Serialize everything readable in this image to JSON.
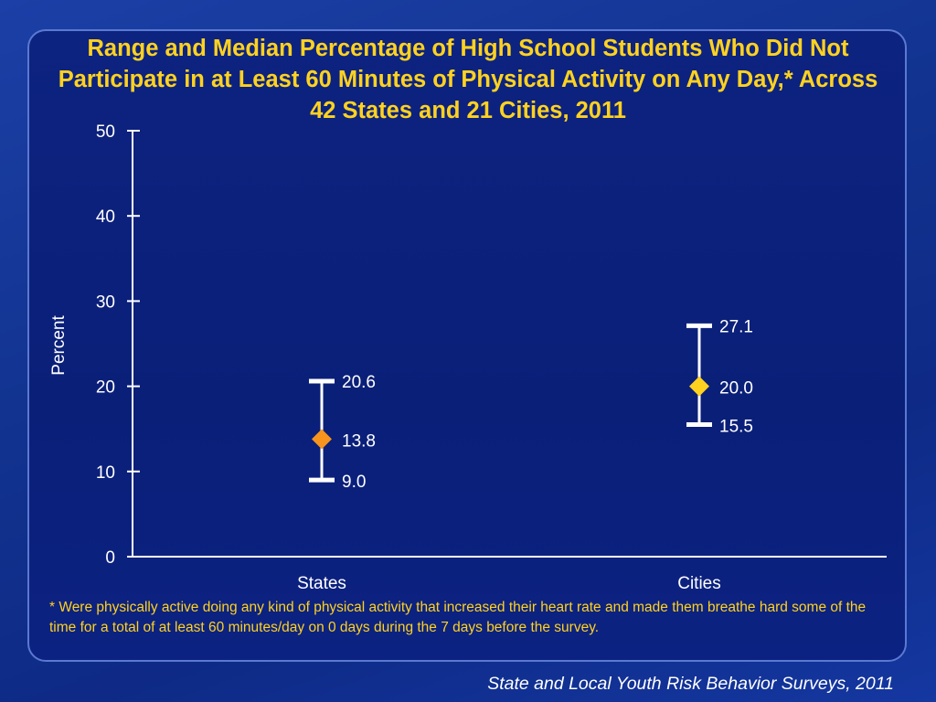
{
  "title": "Range and Median Percentage of High School Students Who Did Not Participate in at Least 60 Minutes of Physical Activity on Any Day,* Across 42 States and 21 Cities, 2011",
  "footnote": "* Were physically active doing any kind of physical activity that increased their heart rate and made them breathe hard some of the time for a total of at least 60 minutes/day on 0 days during the 7 days before the survey.",
  "source": "State and Local Youth Risk Behavior Surveys, 2011",
  "colors": {
    "title": "#ffd21f",
    "states_marker": "#f7941d",
    "cities_marker": "#ffd21f",
    "range_bar": "#ffffff"
  },
  "chart_data": {
    "type": "range",
    "ylabel": "Percent",
    "ylim": [
      0,
      50
    ],
    "yticks": [
      0,
      10,
      20,
      30,
      40,
      50
    ],
    "categories": [
      "States",
      "Cities"
    ],
    "series": [
      {
        "category": "States",
        "min": 9.0,
        "median": 13.8,
        "max": 20.6,
        "min_label": "9.0",
        "median_label": "13.8",
        "max_label": "20.6"
      },
      {
        "category": "Cities",
        "min": 15.5,
        "median": 20.0,
        "max": 27.1,
        "min_label": "15.5",
        "median_label": "20.0",
        "max_label": "27.1"
      }
    ],
    "grid": false
  }
}
